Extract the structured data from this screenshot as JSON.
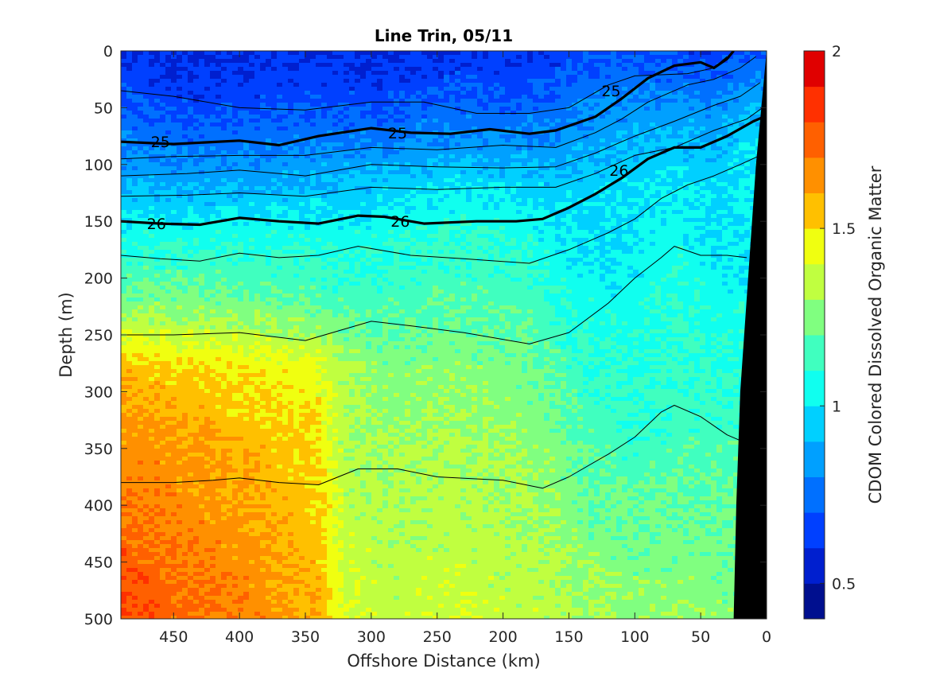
{
  "chart_data": {
    "type": "heatmap",
    "title": "Line Trin, 05/11",
    "xlabel": "Offshore Distance (km)",
    "ylabel": "Depth (m)",
    "colorbar_label": "CDOM Colored Dissolved Organic Matter",
    "xlim": [
      490,
      0
    ],
    "ylim": [
      500,
      0
    ],
    "x_reversed": true,
    "y_reversed": true,
    "x_ticks": [
      450,
      400,
      350,
      300,
      250,
      200,
      150,
      100,
      50,
      0
    ],
    "y_ticks": [
      0,
      50,
      100,
      150,
      200,
      250,
      300,
      350,
      400,
      450,
      500
    ],
    "colorbar": {
      "range": [
        0.4,
        2.0
      ],
      "ticks": [
        0.5,
        1,
        1.5,
        2
      ],
      "tick_labels": [
        "0.5",
        "1",
        "1.5",
        "2"
      ],
      "levels": [
        0.4,
        0.5,
        0.6,
        0.7,
        0.8,
        0.9,
        1.0,
        1.1,
        1.2,
        1.3,
        1.4,
        1.5,
        1.6,
        1.7,
        1.8,
        1.9,
        2.0
      ],
      "colors": [
        "#000f8f",
        "#001fcf",
        "#0040ff",
        "#0070ff",
        "#00a0ff",
        "#00d0ff",
        "#10ffef",
        "#40ffbf",
        "#80ff80",
        "#c0ff40",
        "#f0ff10",
        "#ffc000",
        "#ff9000",
        "#ff6000",
        "#ff3000",
        "#e00000",
        "#b00000"
      ]
    },
    "field": {
      "x": [
        490,
        440,
        390,
        340,
        320,
        290,
        240,
        190,
        160,
        140,
        100,
        70,
        40,
        10
      ],
      "depth": [
        0,
        40,
        80,
        120,
        160,
        220,
        280,
        340,
        400,
        460,
        500
      ],
      "values": [
        [
          0.6,
          0.58,
          0.58,
          0.6,
          0.6,
          0.58,
          0.6,
          0.6,
          0.62,
          0.66,
          0.68,
          0.65,
          0.62,
          0.7
        ],
        [
          0.68,
          0.64,
          0.65,
          0.66,
          0.66,
          0.66,
          0.7,
          0.7,
          0.72,
          0.76,
          0.8,
          0.8,
          0.78,
          0.85
        ],
        [
          0.78,
          0.75,
          0.76,
          0.78,
          0.78,
          0.8,
          0.82,
          0.82,
          0.82,
          0.85,
          0.9,
          0.92,
          0.9,
          0.98
        ],
        [
          0.9,
          0.88,
          0.9,
          0.92,
          0.92,
          0.95,
          1.0,
          0.98,
          0.95,
          0.95,
          0.98,
          1.0,
          0.98,
          1.02
        ],
        [
          1.05,
          1.05,
          1.06,
          1.05,
          1.05,
          1.06,
          1.1,
          1.08,
          1.02,
          0.98,
          1.0,
          1.05,
          1.0,
          1.02
        ],
        [
          1.25,
          1.24,
          1.22,
          1.18,
          1.15,
          1.15,
          1.18,
          1.16,
          1.1,
          1.05,
          1.05,
          1.1,
          1.05,
          1.05
        ],
        [
          1.55,
          1.52,
          1.48,
          1.42,
          1.32,
          1.25,
          1.26,
          1.24,
          1.18,
          1.12,
          1.1,
          1.12,
          1.1,
          1.1
        ],
        [
          1.65,
          1.62,
          1.55,
          1.5,
          1.32,
          1.3,
          1.32,
          1.28,
          1.24,
          1.18,
          1.12,
          1.15,
          1.15,
          1.15
        ],
        [
          1.7,
          1.65,
          1.6,
          1.52,
          1.35,
          1.32,
          1.34,
          1.32,
          1.28,
          1.22,
          1.2,
          1.22,
          1.2,
          1.2
        ],
        [
          1.78,
          1.7,
          1.64,
          1.55,
          1.38,
          1.34,
          1.36,
          1.34,
          1.32,
          1.28,
          1.25,
          1.25,
          1.24,
          1.22
        ],
        [
          1.8,
          1.74,
          1.66,
          1.58,
          1.4,
          1.35,
          1.38,
          1.36,
          1.34,
          1.3,
          1.28,
          1.28,
          1.26,
          1.24
        ]
      ]
    },
    "isopycnals": [
      {
        "label": "",
        "bold": false,
        "points": [
          [
            490,
            0
          ],
          [
            440,
            0
          ]
        ]
      },
      {
        "label": "",
        "bold": false,
        "points": [
          [
            490,
            35
          ],
          [
            450,
            40
          ],
          [
            400,
            50
          ],
          [
            350,
            52
          ],
          [
            300,
            45
          ],
          [
            260,
            45
          ],
          [
            220,
            55
          ],
          [
            180,
            55
          ],
          [
            150,
            50
          ],
          [
            120,
            30
          ],
          [
            100,
            22
          ],
          [
            60,
            20
          ],
          [
            40,
            15
          ],
          [
            30,
            5
          ]
        ]
      },
      {
        "label": "25",
        "bold": true,
        "label_at": [
          [
            460,
            80
          ],
          [
            280,
            72
          ],
          [
            118,
            35
          ]
        ],
        "points": [
          [
            490,
            80
          ],
          [
            450,
            82
          ],
          [
            400,
            79
          ],
          [
            370,
            83
          ],
          [
            340,
            75
          ],
          [
            300,
            68
          ],
          [
            270,
            72
          ],
          [
            240,
            73
          ],
          [
            210,
            69
          ],
          [
            180,
            73
          ],
          [
            160,
            70
          ],
          [
            130,
            58
          ],
          [
            110,
            42
          ],
          [
            90,
            24
          ],
          [
            70,
            13
          ],
          [
            50,
            10
          ],
          [
            40,
            15
          ],
          [
            30,
            7
          ],
          [
            25,
            0
          ]
        ]
      },
      {
        "label": "",
        "bold": false,
        "points": [
          [
            490,
            95
          ],
          [
            450,
            93
          ],
          [
            400,
            92
          ],
          [
            350,
            92
          ],
          [
            300,
            85
          ],
          [
            250,
            87
          ],
          [
            200,
            83
          ],
          [
            160,
            85
          ],
          [
            130,
            72
          ],
          [
            110,
            60
          ],
          [
            90,
            45
          ],
          [
            60,
            30
          ],
          [
            40,
            25
          ],
          [
            20,
            15
          ],
          [
            8,
            5
          ]
        ]
      },
      {
        "label": "",
        "bold": false,
        "points": [
          [
            490,
            110
          ],
          [
            440,
            108
          ],
          [
            400,
            105
          ],
          [
            350,
            110
          ],
          [
            300,
            100
          ],
          [
            250,
            102
          ],
          [
            200,
            103
          ],
          [
            160,
            102
          ],
          [
            130,
            90
          ],
          [
            100,
            75
          ],
          [
            70,
            62
          ],
          [
            40,
            48
          ],
          [
            20,
            40
          ],
          [
            5,
            28
          ]
        ]
      },
      {
        "label": "",
        "bold": false,
        "points": [
          [
            490,
            128
          ],
          [
            440,
            127
          ],
          [
            400,
            125
          ],
          [
            350,
            128
          ],
          [
            300,
            120
          ],
          [
            250,
            122
          ],
          [
            200,
            120
          ],
          [
            160,
            120
          ],
          [
            130,
            108
          ],
          [
            100,
            92
          ],
          [
            70,
            85
          ],
          [
            40,
            70
          ],
          [
            15,
            60
          ],
          [
            3,
            50
          ]
        ]
      },
      {
        "label": "26",
        "bold": true,
        "label_at": [
          [
            463,
            152
          ],
          [
            278,
            150
          ],
          [
            112,
            105
          ]
        ],
        "points": [
          [
            490,
            150
          ],
          [
            460,
            152
          ],
          [
            430,
            153
          ],
          [
            400,
            147
          ],
          [
            370,
            150
          ],
          [
            340,
            152
          ],
          [
            310,
            145
          ],
          [
            290,
            146
          ],
          [
            260,
            152
          ],
          [
            220,
            150
          ],
          [
            190,
            150
          ],
          [
            170,
            148
          ],
          [
            150,
            138
          ],
          [
            130,
            126
          ],
          [
            110,
            112
          ],
          [
            90,
            95
          ],
          [
            70,
            85
          ],
          [
            50,
            85
          ],
          [
            30,
            75
          ],
          [
            10,
            62
          ],
          [
            2,
            58
          ]
        ]
      },
      {
        "label": "",
        "bold": false,
        "points": [
          [
            490,
            180
          ],
          [
            460,
            183
          ],
          [
            430,
            185
          ],
          [
            400,
            178
          ],
          [
            370,
            182
          ],
          [
            340,
            180
          ],
          [
            310,
            172
          ],
          [
            270,
            180
          ],
          [
            230,
            183
          ],
          [
            180,
            187
          ],
          [
            150,
            175
          ],
          [
            120,
            160
          ],
          [
            100,
            148
          ],
          [
            80,
            130
          ],
          [
            60,
            118
          ],
          [
            40,
            110
          ],
          [
            20,
            100
          ],
          [
            5,
            92
          ]
        ]
      },
      {
        "label": "",
        "bold": false,
        "points": [
          [
            490,
            250
          ],
          [
            450,
            250
          ],
          [
            400,
            248
          ],
          [
            350,
            255
          ],
          [
            300,
            238
          ],
          [
            270,
            242
          ],
          [
            230,
            248
          ],
          [
            180,
            258
          ],
          [
            150,
            248
          ],
          [
            120,
            222
          ],
          [
            100,
            200
          ],
          [
            80,
            182
          ],
          [
            70,
            172
          ],
          [
            50,
            180
          ],
          [
            30,
            180
          ],
          [
            15,
            182
          ]
        ]
      },
      {
        "label": "",
        "bold": false,
        "points": [
          [
            490,
            380
          ],
          [
            450,
            380
          ],
          [
            420,
            378
          ],
          [
            400,
            376
          ],
          [
            370,
            380
          ],
          [
            340,
            382
          ],
          [
            310,
            368
          ],
          [
            280,
            368
          ],
          [
            250,
            375
          ],
          [
            200,
            378
          ],
          [
            170,
            385
          ],
          [
            150,
            375
          ],
          [
            120,
            355
          ],
          [
            100,
            340
          ],
          [
            80,
            318
          ],
          [
            70,
            312
          ],
          [
            50,
            322
          ],
          [
            30,
            338
          ],
          [
            20,
            343
          ]
        ]
      }
    ],
    "bathymetry": {
      "points": [
        [
          25,
          500
        ],
        [
          23,
          400
        ],
        [
          20,
          300
        ],
        [
          14,
          200
        ],
        [
          8,
          100
        ],
        [
          4,
          50
        ],
        [
          0,
          0
        ]
      ]
    }
  }
}
